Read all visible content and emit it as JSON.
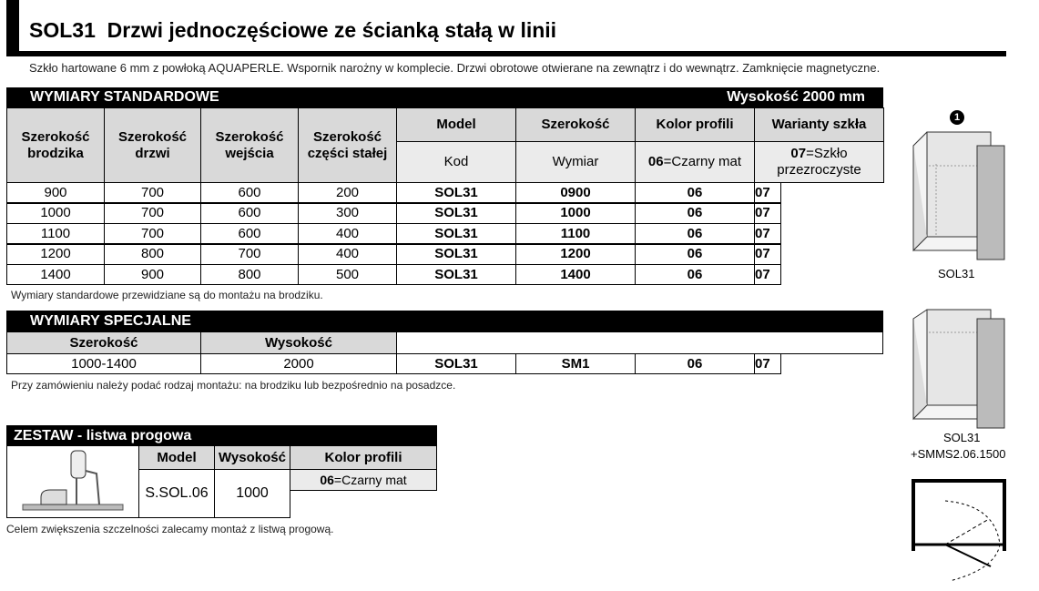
{
  "title": "SOL31  Drzwi jednoczęściowe ze ścianką stałą w linii",
  "description": "Szkło hartowane 6 mm z powłoką AQUAPERLE. Wspornik narożny w komplecie. Drzwi obrotowe otwierane na zewnątrz i do wewnątrz. Zamknięcie magnetyczne.",
  "standard": {
    "heading": "WYMIARY STANDARDOWE",
    "height": "Wysokość 2000 mm",
    "headers": [
      "Szerokość brodzika",
      "Szerokość drzwi",
      "Szerokość wejścia",
      "Szerokość części stałej",
      "Model",
      "Szerokość",
      "Kolor profili",
      "Warianty szkła"
    ],
    "subheaders": {
      "model": "Kod",
      "width": "Wymiar",
      "color_code": "06",
      "color_text": "=Czarny  mat",
      "glass_code": "07",
      "glass_text": "=Szkło przezroczyste"
    },
    "rows": [
      [
        "900",
        "700",
        "600",
        "200",
        "SOL31",
        "0900",
        "06",
        "07"
      ],
      [
        "1000",
        "700",
        "600",
        "300",
        "SOL31",
        "1000",
        "06",
        "07"
      ],
      [
        "1100",
        "700",
        "600",
        "400",
        "SOL31",
        "1100",
        "06",
        "07"
      ],
      [
        "1200",
        "800",
        "700",
        "400",
        "SOL31",
        "1200",
        "06",
        "07"
      ],
      [
        "1400",
        "900",
        "800",
        "500",
        "SOL31",
        "1400",
        "06",
        "07"
      ]
    ],
    "note": "Wymiary standardowe przewidziane są do montażu na brodziku."
  },
  "special": {
    "heading": "WYMIARY SPECJALNE",
    "headers": [
      "Szerokość",
      "Wysokość"
    ],
    "row": [
      "1000-1400",
      "2000",
      "SOL31",
      "SM1",
      "06",
      "07"
    ],
    "note": "Przy zamówieniu należy podać rodzaj montażu: na brodziku lub bezpośrednio na posadzce."
  },
  "kit": {
    "heading": "ZESTAW - listwa progowa",
    "headers": [
      "Model",
      "Wysokość",
      "Kolor profili"
    ],
    "model": "S.SOL.06",
    "height": "1000",
    "color_code": "06",
    "color_text": "=Czarny mat",
    "note": "Celem zwiększenia szczelności zalecamy montaż z listwą progową."
  },
  "figures": {
    "badge": "1",
    "fig1": "SOL31",
    "fig2_line1": "SOL31",
    "fig2_line2": "+SMMS2.06.1500"
  }
}
